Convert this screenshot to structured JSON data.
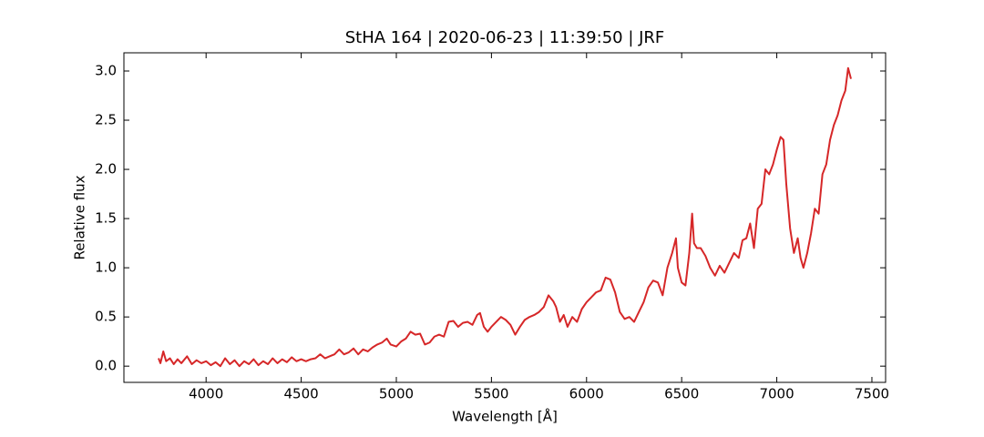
{
  "chart_data": {
    "type": "line",
    "title": "StHA 164 | 2020-06-23 | 11:39:50 | JRF",
    "x_label": "Wavelength [Å]",
    "y_label": "Relative flux",
    "xlim": [
      3568,
      7572
    ],
    "ylim": [
      -0.165,
      3.185
    ],
    "xticks": [
      4000,
      4500,
      5000,
      5500,
      6000,
      6500,
      7000,
      7500
    ],
    "yticks": [
      {
        "value": 0,
        "label": "0.0"
      },
      {
        "value": 0.5,
        "label": "0.5"
      },
      {
        "value": 1,
        "label": "1.0"
      },
      {
        "value": 1.5,
        "label": "1.5"
      },
      {
        "value": 2,
        "label": "2.0"
      },
      {
        "value": 2.5,
        "label": "2.5"
      },
      {
        "value": 3,
        "label": "3.0"
      }
    ],
    "color": "#d62728",
    "x": [
      3750,
      3760,
      3775,
      3790,
      3810,
      3830,
      3850,
      3870,
      3900,
      3925,
      3950,
      3975,
      4000,
      4025,
      4050,
      4075,
      4100,
      4125,
      4150,
      4175,
      4200,
      4225,
      4250,
      4275,
      4300,
      4325,
      4350,
      4375,
      4400,
      4425,
      4450,
      4475,
      4500,
      4525,
      4550,
      4575,
      4600,
      4625,
      4650,
      4675,
      4700,
      4725,
      4750,
      4775,
      4800,
      4825,
      4850,
      4875,
      4900,
      4925,
      4950,
      4970,
      5000,
      5025,
      5050,
      5075,
      5100,
      5125,
      5150,
      5175,
      5200,
      5225,
      5250,
      5275,
      5300,
      5325,
      5350,
      5375,
      5400,
      5425,
      5440,
      5460,
      5480,
      5500,
      5525,
      5550,
      5575,
      5600,
      5625,
      5650,
      5675,
      5700,
      5725,
      5750,
      5775,
      5800,
      5825,
      5840,
      5860,
      5880,
      5900,
      5925,
      5950,
      5975,
      6000,
      6025,
      6050,
      6075,
      6100,
      6125,
      6150,
      6175,
      6200,
      6225,
      6250,
      6275,
      6300,
      6325,
      6350,
      6375,
      6400,
      6425,
      6450,
      6470,
      6480,
      6500,
      6520,
      6540,
      6555,
      6565,
      6580,
      6600,
      6625,
      6650,
      6675,
      6700,
      6725,
      6750,
      6775,
      6800,
      6820,
      6840,
      6860,
      6880,
      6900,
      6920,
      6940,
      6960,
      6980,
      7000,
      7020,
      7035,
      7050,
      7070,
      7090,
      7110,
      7125,
      7140,
      7160,
      7180,
      7200,
      7220,
      7240,
      7260,
      7280,
      7300,
      7320,
      7340,
      7360,
      7375,
      7390
    ],
    "values": [
      0.08,
      0.03,
      0.15,
      0.05,
      0.08,
      0.02,
      0.07,
      0.03,
      0.1,
      0.02,
      0.06,
      0.03,
      0.05,
      0.01,
      0.04,
      0.0,
      0.08,
      0.02,
      0.06,
      0.0,
      0.05,
      0.02,
      0.07,
      0.01,
      0.05,
      0.02,
      0.08,
      0.03,
      0.07,
      0.04,
      0.09,
      0.05,
      0.07,
      0.05,
      0.07,
      0.08,
      0.12,
      0.08,
      0.1,
      0.12,
      0.17,
      0.12,
      0.14,
      0.18,
      0.12,
      0.17,
      0.15,
      0.19,
      0.22,
      0.24,
      0.28,
      0.22,
      0.2,
      0.25,
      0.28,
      0.35,
      0.32,
      0.33,
      0.22,
      0.24,
      0.3,
      0.32,
      0.3,
      0.45,
      0.46,
      0.4,
      0.44,
      0.45,
      0.42,
      0.52,
      0.54,
      0.4,
      0.35,
      0.4,
      0.45,
      0.5,
      0.47,
      0.42,
      0.32,
      0.4,
      0.47,
      0.5,
      0.52,
      0.55,
      0.6,
      0.72,
      0.66,
      0.6,
      0.45,
      0.52,
      0.4,
      0.5,
      0.45,
      0.58,
      0.65,
      0.7,
      0.75,
      0.77,
      0.9,
      0.88,
      0.75,
      0.55,
      0.48,
      0.5,
      0.45,
      0.55,
      0.65,
      0.8,
      0.87,
      0.85,
      0.72,
      1.0,
      1.15,
      1.3,
      1.0,
      0.85,
      0.82,
      1.15,
      1.55,
      1.25,
      1.2,
      1.2,
      1.12,
      1.0,
      0.92,
      1.02,
      0.95,
      1.05,
      1.15,
      1.1,
      1.28,
      1.3,
      1.45,
      1.2,
      1.6,
      1.65,
      2.0,
      1.95,
      2.05,
      2.2,
      2.33,
      2.3,
      1.85,
      1.4,
      1.15,
      1.3,
      1.1,
      1.0,
      1.15,
      1.35,
      1.6,
      1.55,
      1.95,
      2.05,
      2.3,
      2.45,
      2.55,
      2.7,
      2.8,
      3.03,
      2.92
    ]
  }
}
